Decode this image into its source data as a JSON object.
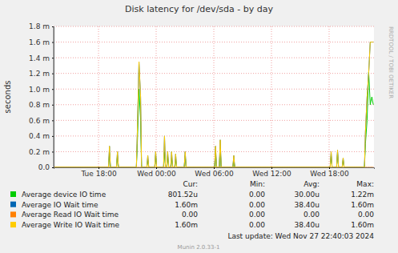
{
  "chart_data": {
    "type": "line",
    "title": "Disk latency for /dev/sda - by day",
    "y_label": "seconds",
    "watermark": "RRDTOOL / TOBI OETIKER",
    "footer": "Last update:  Wed Nov 27 22:40:03 2024",
    "credit": "Munin 2.0.33-1",
    "summary_columns": [
      "Cur:",
      "Min:",
      "Avg:",
      "Max:"
    ],
    "grid": true,
    "xlim": [
      13.33,
      46.67
    ],
    "xticks": [
      {
        "value": 18,
        "label": "Tue 18:00"
      },
      {
        "value": 24,
        "label": "Wed 00:00"
      },
      {
        "value": 30,
        "label": "Wed 06:00"
      },
      {
        "value": 36,
        "label": "Wed 12:00"
      },
      {
        "value": 42,
        "label": "Wed 18:00"
      }
    ],
    "ylim": [
      0,
      0.0018
    ],
    "yticks": [
      {
        "value": 0,
        "label": "0.0"
      },
      {
        "value": 0.0002,
        "label": "0.2 m"
      },
      {
        "value": 0.0004,
        "label": "0.4 m"
      },
      {
        "value": 0.0006,
        "label": "0.6 m"
      },
      {
        "value": 0.0008,
        "label": "0.8 m"
      },
      {
        "value": 0.001,
        "label": "1.0 m"
      },
      {
        "value": 0.0012,
        "label": "1.2 m"
      },
      {
        "value": 0.0014,
        "label": "1.4 m"
      },
      {
        "value": 0.0016,
        "label": "1.6 m"
      },
      {
        "value": 0.0018,
        "label": "1.8 m"
      }
    ],
    "x": [
      13.33,
      19.04,
      19.14,
      19.24,
      19.87,
      19.97,
      20.07,
      21.94,
      22.04,
      22.21,
      22.38,
      22.48,
      23.03,
      23.13,
      23.23,
      23.85,
      23.95,
      24.05,
      24.77,
      24.87,
      24.97,
      25.1,
      25.2,
      25.3,
      25.51,
      25.61,
      25.71,
      25.93,
      26.03,
      26.13,
      26.92,
      27.02,
      27.12,
      30.08,
      30.18,
      30.28,
      30.57,
      30.67,
      30.77,
      31.98,
      32.08,
      32.18,
      42.11,
      42.21,
      42.31,
      42.78,
      42.88,
      42.98,
      43.36,
      43.46,
      43.56,
      45.68,
      45.78,
      45.95,
      46.12,
      46.28,
      46.45,
      46.6
    ],
    "series": [
      {
        "name": "Average device IO time",
        "color": "#00cc00",
        "summary": [
          "801.52u",
          "0.00",
          "30.00u",
          "1.22m"
        ],
        "values": [
          0,
          0,
          0.00018,
          0,
          0,
          0.00015,
          0,
          0,
          0.0003,
          0.001,
          0.0006,
          0,
          0,
          0.0001,
          0,
          0,
          0.00015,
          0,
          0,
          0.0002,
          0,
          0,
          0.00015,
          0,
          0,
          0.00012,
          0,
          0,
          0.0001,
          0,
          0,
          0.00015,
          0,
          0,
          0.0002,
          0,
          0,
          0.00025,
          0,
          0,
          0.0001,
          0,
          0,
          0.00015,
          0,
          0,
          0.00018,
          0,
          0,
          0.0001,
          0,
          0,
          0.0003,
          0.0006,
          0.00122,
          0.0008,
          0.0009,
          0.0008
        ]
      },
      {
        "name": "Average IO Wait time",
        "color": "#0066b3",
        "summary": [
          "1.60m",
          "0.00",
          "38.40u",
          "1.60m"
        ],
        "values": [
          0,
          0,
          0.00027,
          0,
          0,
          0.0002,
          0,
          0,
          0.00045,
          0.00135,
          0.0009,
          0,
          0,
          0.00015,
          0,
          0,
          0.0002,
          0,
          0,
          0.0004,
          0,
          0,
          0.0002,
          0,
          0,
          0.0002,
          0,
          0,
          0.00017,
          0,
          0,
          0.0002,
          0,
          0,
          0.00027,
          0,
          0,
          0.00035,
          0,
          0,
          0.00015,
          0,
          0,
          0.0002,
          0,
          0,
          0.00022,
          0,
          0,
          0.00012,
          0,
          0,
          0.00045,
          0.0009,
          0.0012,
          0.0016,
          0.0016,
          0.0016
        ]
      },
      {
        "name": "Average Read IO Wait time",
        "color": "#ff8000",
        "summary": [
          "0.00",
          "0.00",
          "0.00",
          "0.00"
        ],
        "values": [
          0,
          0,
          0,
          0,
          0,
          0,
          0,
          0,
          0,
          0,
          0,
          0,
          0,
          0,
          0,
          0,
          0,
          0,
          0,
          0,
          0,
          0,
          0,
          0,
          0,
          0,
          0,
          0,
          0,
          0,
          0,
          0,
          0,
          0,
          0,
          0,
          0,
          0,
          0,
          0,
          0,
          0,
          0,
          0,
          0,
          0,
          0,
          0,
          0,
          0,
          0,
          0,
          0,
          0,
          0,
          0,
          0,
          0
        ]
      },
      {
        "name": "Average Write IO Wait time",
        "color": "#ffcc00",
        "summary": [
          "1.60m",
          "0.00",
          "38.40u",
          "1.60m"
        ],
        "values": [
          0,
          0,
          0.00027,
          0,
          0,
          0.0002,
          0,
          0,
          0.00045,
          0.00135,
          0.0009,
          0,
          0,
          0.00015,
          0,
          0,
          0.0002,
          0,
          0,
          0.0004,
          0,
          0,
          0.0002,
          0,
          0,
          0.0002,
          0,
          0,
          0.00017,
          0,
          0,
          0.0002,
          0,
          0,
          0.00027,
          0,
          0,
          0.00035,
          0,
          0,
          0.00015,
          0,
          0,
          0.0002,
          0,
          0,
          0.00022,
          0,
          0,
          0.00012,
          0,
          0,
          0.00045,
          0.0009,
          0.0012,
          0.0016,
          0.0016,
          0.0016
        ]
      }
    ]
  }
}
